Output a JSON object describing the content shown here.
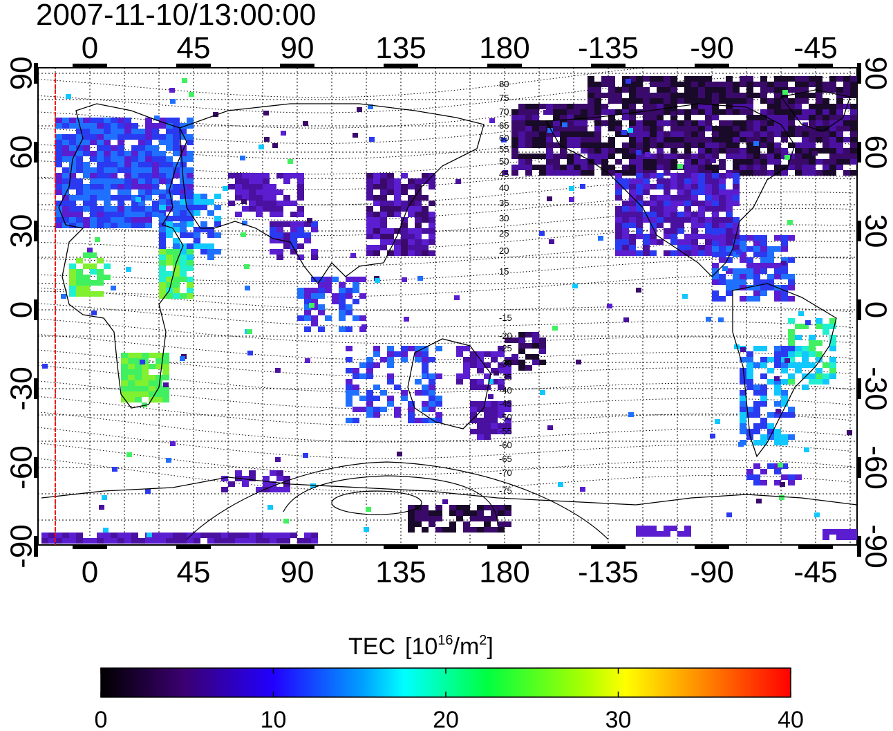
{
  "timestamp": "2007-11-10/13:00:00",
  "map": {
    "top_lon_labels": [
      "0",
      "45",
      "90",
      "135",
      "180",
      "-135",
      "-90",
      "-45"
    ],
    "bottom_lon_labels": [
      "0",
      "45",
      "90",
      "135",
      "180",
      "-135",
      "-90",
      "-45"
    ],
    "left_lat_labels": [
      "90",
      "60",
      "30",
      "0",
      "-30",
      "-60",
      "-90"
    ],
    "right_lat_labels": [
      "90",
      "60",
      "30",
      "0",
      "-30",
      "-60",
      "-90"
    ],
    "north_contour_labels": [
      "80",
      "75",
      "70",
      "65",
      "60",
      "55",
      "50",
      "45",
      "40",
      "35",
      "30",
      "25",
      "20",
      "15"
    ],
    "south_contour_labels": [
      "-15",
      "-20",
      "-25",
      "-30",
      "-35",
      "-40",
      "-45",
      "-50",
      "-55",
      "-60",
      "-65",
      "-70",
      "-75"
    ]
  },
  "colorbar": {
    "title": "TEC",
    "unit_prefix": "[10",
    "unit_exp": "16",
    "unit_mid": "/m",
    "unit_exp2": "2",
    "unit_suffix": "]",
    "tick_labels": [
      "0",
      "10",
      "20",
      "30",
      "40"
    ],
    "range": [
      0,
      40
    ],
    "colors": [
      "#000000",
      "#3a006f",
      "#2a00ff",
      "#00ffff",
      "#00ff00",
      "#ffff00",
      "#ff7f00",
      "#ff0000"
    ]
  }
}
